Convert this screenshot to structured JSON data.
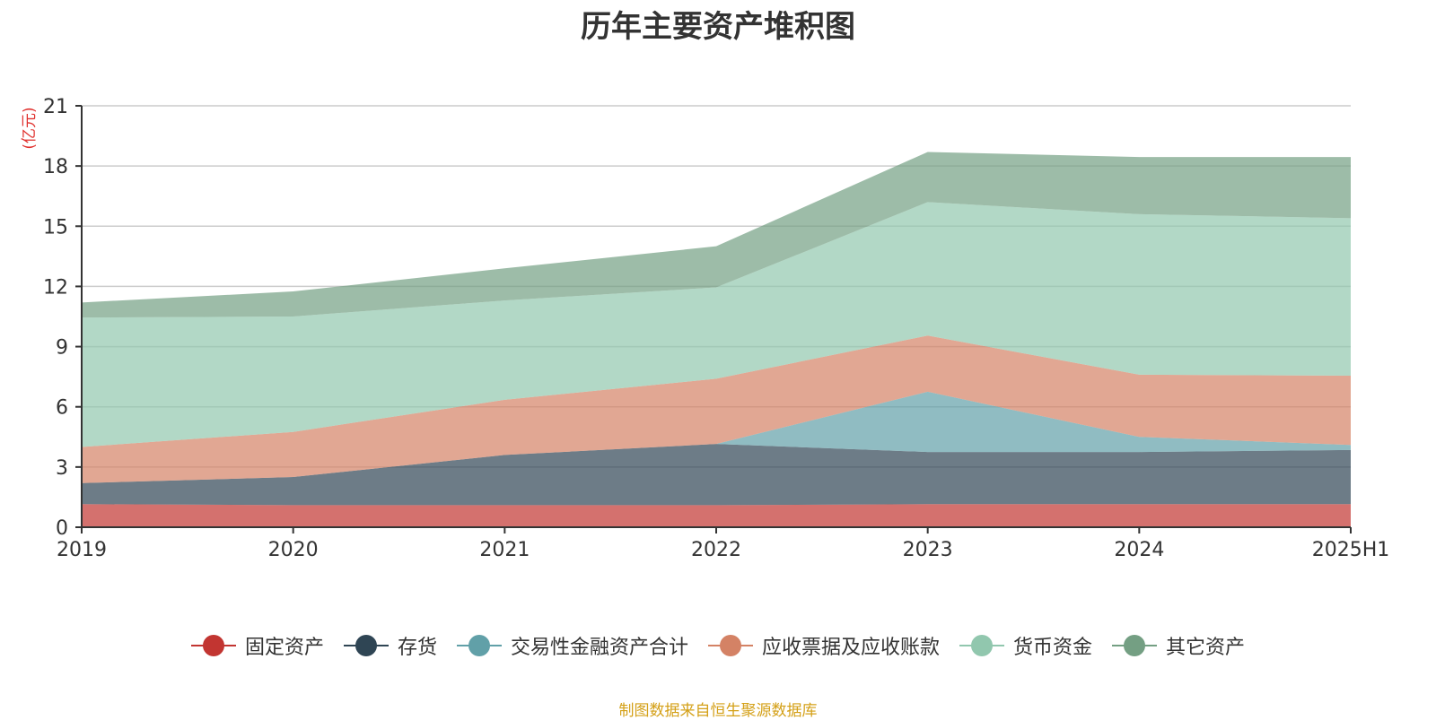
{
  "chart_data": {
    "type": "area",
    "stacked": true,
    "title": "历年主要资产堆积图",
    "ylabel": "(亿元)",
    "xlabel": "",
    "categories": [
      "2019",
      "2020",
      "2021",
      "2022",
      "2023",
      "2024",
      "2025H1"
    ],
    "ylim": [
      0,
      21
    ],
    "yticks": [
      0,
      3,
      6,
      9,
      12,
      15,
      18,
      21
    ],
    "grid": true,
    "legend_position": "bottom",
    "series": [
      {
        "name": "固定资产",
        "color": "#c23531",
        "values": [
          1.15,
          1.1,
          1.1,
          1.1,
          1.15,
          1.15,
          1.15
        ]
      },
      {
        "name": "存货",
        "color": "#2f4554",
        "values": [
          1.05,
          1.4,
          2.5,
          3.05,
          2.6,
          2.6,
          2.7
        ]
      },
      {
        "name": "交易性金融资产合计",
        "color": "#61a0a8",
        "values": [
          0,
          0,
          0,
          0,
          3.0,
          0.75,
          0.25
        ]
      },
      {
        "name": "应收票据及应收账款",
        "color": "#d48265",
        "values": [
          1.8,
          2.25,
          2.75,
          3.25,
          2.8,
          3.1,
          3.45
        ]
      },
      {
        "name": "货币资金",
        "color": "#91c7ae",
        "values": [
          6.45,
          5.75,
          4.95,
          4.55,
          6.65,
          8.0,
          7.85
        ]
      },
      {
        "name": "其它资产",
        "color": "#749f83",
        "values": [
          0.75,
          1.25,
          1.6,
          2.05,
          2.5,
          2.85,
          3.05
        ]
      }
    ]
  },
  "source_note": "制图数据来自恒生聚源数据库"
}
